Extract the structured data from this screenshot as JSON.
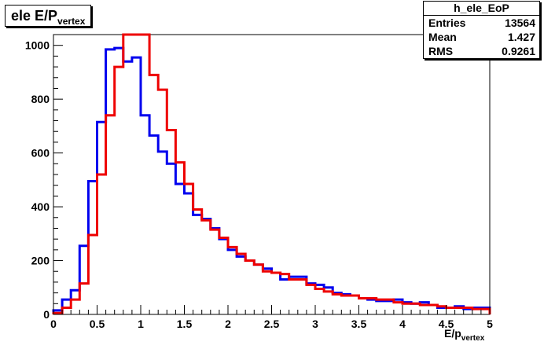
{
  "title": {
    "main": "ele E/P",
    "sub": "vertex"
  },
  "stats": {
    "name": "h_ele_EoP",
    "rows": [
      {
        "label": "Entries",
        "value": "13564"
      },
      {
        "label": "Mean",
        "value": "1.427"
      },
      {
        "label": "RMS",
        "value": "0.9261"
      }
    ]
  },
  "chart_data": {
    "type": "step-histogram",
    "title": "ele E/P_vertex",
    "xlabel": "E/p_vertex",
    "ylabel": "",
    "xlim": [
      0,
      5
    ],
    "ylim": [
      0,
      1040
    ],
    "bin_width": 0.1,
    "x_ticks": [
      0,
      0.5,
      1,
      1.5,
      2,
      2.5,
      3,
      3.5,
      4,
      4.5,
      5
    ],
    "x_tick_labels": [
      "0",
      "0.5",
      "1",
      "1.5",
      "2",
      "2.5",
      "3",
      "3.5",
      "4",
      "4.5",
      "5"
    ],
    "y_ticks": [
      0,
      200,
      400,
      600,
      800,
      1000
    ],
    "y_tick_labels": [
      "0",
      "200",
      "400",
      "600",
      "800",
      "1000"
    ],
    "grid": false,
    "series": [
      {
        "color": "#0000ee",
        "values": [
          15,
          55,
          90,
          255,
          495,
          715,
          985,
          990,
          940,
          955,
          740,
          665,
          605,
          560,
          485,
          450,
          370,
          355,
          320,
          280,
          240,
          215,
          200,
          185,
          170,
          155,
          130,
          140,
          140,
          115,
          110,
          100,
          80,
          75,
          70,
          60,
          55,
          50,
          50,
          55,
          45,
          40,
          45,
          35,
          25,
          25,
          30,
          20,
          25,
          25
        ]
      },
      {
        "color": "#ee0000",
        "values": [
          5,
          25,
          55,
          115,
          295,
          520,
          740,
          920,
          1040,
          1040,
          1040,
          890,
          835,
          685,
          565,
          485,
          390,
          350,
          315,
          285,
          250,
          225,
          200,
          185,
          160,
          155,
          150,
          130,
          130,
          110,
          95,
          85,
          75,
          70,
          70,
          60,
          60,
          55,
          55,
          45,
          40,
          40,
          35,
          35,
          30,
          25,
          25,
          25,
          20,
          20
        ]
      }
    ]
  }
}
